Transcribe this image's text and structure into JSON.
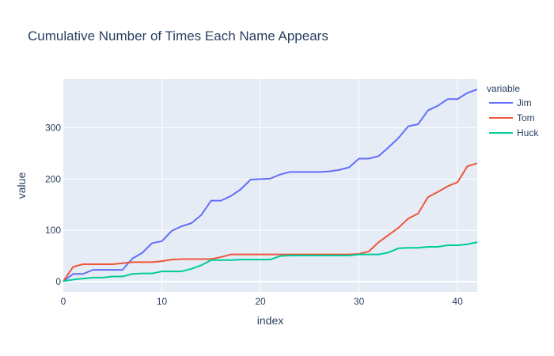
{
  "chart_data": {
    "type": "line",
    "title": "Cumulative Number of Times Each Name Appears",
    "xlabel": "index",
    "ylabel": "value",
    "xlim": [
      0,
      42
    ],
    "ylim": [
      -20,
      395
    ],
    "x_ticks": [
      0,
      10,
      20,
      30,
      40
    ],
    "y_ticks": [
      0,
      100,
      200,
      300
    ],
    "grid": true,
    "legend": {
      "title": "variable",
      "placement": "right"
    },
    "x": [
      0,
      1,
      2,
      3,
      4,
      5,
      6,
      7,
      8,
      9,
      10,
      11,
      12,
      13,
      14,
      15,
      16,
      17,
      18,
      19,
      20,
      21,
      22,
      23,
      24,
      25,
      26,
      27,
      28,
      29,
      30,
      31,
      32,
      33,
      34,
      35,
      36,
      37,
      38,
      39,
      40,
      41,
      42
    ],
    "series": [
      {
        "name": "Jim",
        "color": "#636efa",
        "values": [
          1,
          15,
          15,
          23,
          23,
          23,
          23,
          45,
          56,
          75,
          79,
          99,
          108,
          114,
          130,
          158,
          158,
          167,
          180,
          199,
          200,
          201,
          209,
          214,
          214,
          214,
          214,
          215,
          218,
          223,
          240,
          240,
          245,
          262,
          280,
          303,
          307,
          334,
          343,
          356,
          356,
          368,
          375
        ]
      },
      {
        "name": "Tom",
        "color": "#ef553b",
        "values": [
          1,
          29,
          34,
          34,
          34,
          34,
          36,
          38,
          38,
          38,
          40,
          43,
          44,
          44,
          44,
          44,
          48,
          53,
          53,
          53,
          53,
          53,
          53,
          53,
          53,
          53,
          53,
          53,
          53,
          53,
          54,
          59,
          77,
          91,
          105,
          123,
          133,
          165,
          175,
          186,
          194,
          225,
          231
        ]
      },
      {
        "name": "Huck",
        "color": "#00cc96",
        "values": [
          1,
          4,
          6,
          8,
          8,
          10,
          10,
          15,
          16,
          16,
          20,
          20,
          20,
          25,
          32,
          42,
          42,
          42,
          43,
          43,
          43,
          43,
          50,
          51,
          51,
          51,
          51,
          51,
          51,
          51,
          53,
          53,
          53,
          57,
          65,
          66,
          66,
          68,
          68,
          71,
          71,
          73,
          77
        ]
      }
    ]
  }
}
